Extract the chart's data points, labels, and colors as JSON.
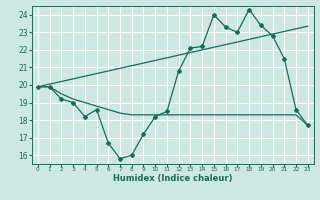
{
  "title": "",
  "xlabel": "Humidex (Indice chaleur)",
  "ylabel": "",
  "background_color": "#cce8e0",
  "grid_color": "#ffffff",
  "line_color": "#1a6b5a",
  "xlim": [
    -0.5,
    23.5
  ],
  "ylim": [
    15.5,
    24.5
  ],
  "xticks": [
    0,
    1,
    2,
    3,
    4,
    5,
    6,
    7,
    8,
    9,
    10,
    11,
    12,
    13,
    14,
    15,
    16,
    17,
    18,
    19,
    20,
    21,
    22,
    23
  ],
  "yticks": [
    16,
    17,
    18,
    19,
    20,
    21,
    22,
    23,
    24
  ],
  "line1_x": [
    0,
    1,
    2,
    3,
    4,
    5,
    6,
    7,
    8,
    9,
    10,
    11,
    12,
    13,
    14,
    15,
    16,
    17,
    18,
    19,
    20,
    21,
    22,
    23
  ],
  "line1_y": [
    19.9,
    19.9,
    19.5,
    19.2,
    19.0,
    18.8,
    18.6,
    18.4,
    18.3,
    18.3,
    18.3,
    18.3,
    18.3,
    18.3,
    18.3,
    18.3,
    18.3,
    18.3,
    18.3,
    18.3,
    18.3,
    18.3,
    18.3,
    17.7
  ],
  "line2_x": [
    0,
    1,
    2,
    3,
    4,
    5,
    6,
    7,
    8,
    9,
    10,
    11,
    12,
    13,
    14,
    15,
    16,
    17,
    18,
    19,
    20,
    21,
    22,
    23
  ],
  "line2_y": [
    19.9,
    19.9,
    19.2,
    19.0,
    18.2,
    18.6,
    16.7,
    15.8,
    16.0,
    17.2,
    18.2,
    18.5,
    20.8,
    22.1,
    22.2,
    24.0,
    23.3,
    23.0,
    24.3,
    23.4,
    22.8,
    21.5,
    18.6,
    17.7
  ],
  "line3_x": [
    0,
    23
  ],
  "line3_y": [
    19.9,
    23.35
  ]
}
